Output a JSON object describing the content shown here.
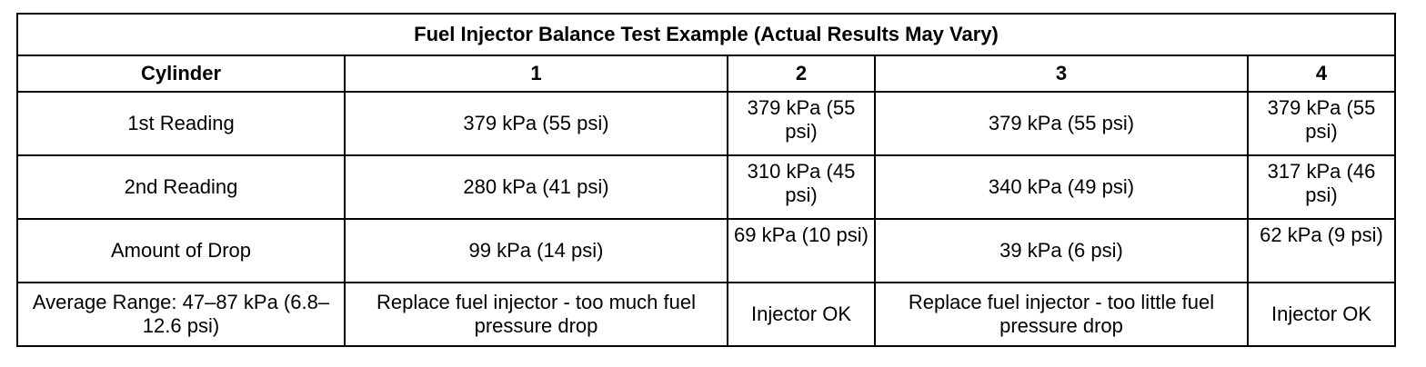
{
  "table": {
    "title": "Fuel Injector Balance Test Example (Actual Results May Vary)",
    "headers": [
      "Cylinder",
      "1",
      "2",
      "3",
      "4"
    ],
    "rows": [
      {
        "label": "1st Reading",
        "cells": [
          "379 kPa (55 psi)",
          "379 kPa (55 psi)",
          "379 kPa (55 psi)",
          "379 kPa (55 psi)"
        ]
      },
      {
        "label": "2nd Reading",
        "cells": [
          "280 kPa (41 psi)",
          "310 kPa (45 psi)",
          "340 kPa (49 psi)",
          "317 kPa (46 psi)"
        ]
      },
      {
        "label": "Amount of Drop",
        "cells": [
          "99 kPa (14 psi)",
          "69 kPa (10 psi)",
          "39 kPa (6 psi)",
          "62 kPa (9 psi)"
        ]
      },
      {
        "label": "Average Range: 47–87 kPa (6.8–12.6 psi)",
        "cells": [
          "Replace fuel injector - too much fuel pressure drop",
          "Injector OK",
          "Replace fuel injector - too little fuel pressure drop",
          "Injector OK"
        ]
      }
    ]
  }
}
